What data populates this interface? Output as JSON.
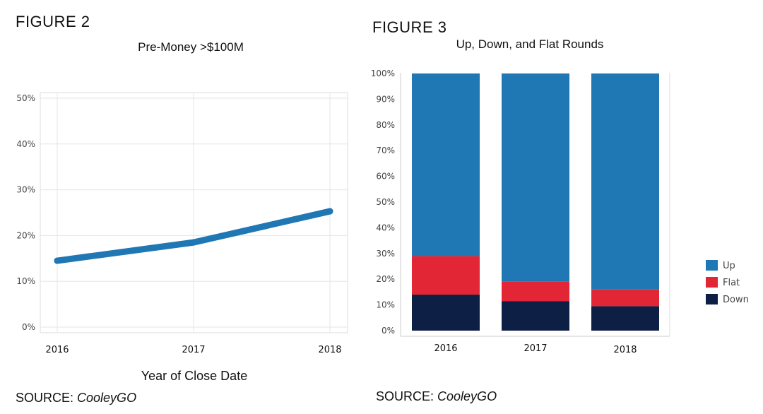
{
  "figure2": {
    "label": "FIGURE 2",
    "source_prefix": "SOURCE:",
    "source_name": "CooleyGO",
    "colors": {
      "line": "#1f77b4",
      "grid": "#e6e6e6",
      "frame": "#dddddd"
    }
  },
  "figure3": {
    "label": "FIGURE 3",
    "source_prefix": "SOURCE:",
    "source_name": "CooleyGO",
    "colors": {
      "Up": "#1f77b4",
      "Flat": "#e32636",
      "Down": "#0d1f45"
    }
  },
  "chart_data": [
    {
      "type": "line",
      "title": "Pre-Money >$100M",
      "xlabel": "Year of Close Date",
      "ylabel": "",
      "x": [
        "2016",
        "2017",
        "2018"
      ],
      "series": [
        {
          "values": [
            14.5,
            18.5,
            25.3
          ]
        }
      ],
      "ylim": [
        0,
        50
      ],
      "yticks": [
        "0%",
        "10%",
        "20%",
        "30%",
        "40%",
        "50%"
      ],
      "ytick_values": [
        0,
        10,
        20,
        30,
        40,
        50
      ],
      "grid": true
    },
    {
      "type": "bar",
      "stacked": true,
      "title": "Up, Down, and Flat Rounds",
      "categories": [
        "2016",
        "2017",
        "2018"
      ],
      "series": [
        {
          "name": "Down",
          "values": [
            14,
            11.5,
            9.5
          ]
        },
        {
          "name": "Flat",
          "values": [
            15,
            7.5,
            6.5
          ]
        },
        {
          "name": "Up",
          "values": [
            71,
            81,
            84
          ]
        }
      ],
      "legend_order": [
        "Up",
        "Flat",
        "Down"
      ],
      "ylim": [
        0,
        100
      ],
      "yticks": [
        "0%",
        "10%",
        "20%",
        "30%",
        "40%",
        "50%",
        "60%",
        "70%",
        "80%",
        "90%",
        "100%"
      ],
      "ytick_values": [
        0,
        10,
        20,
        30,
        40,
        50,
        60,
        70,
        80,
        90,
        100
      ],
      "legend_position": "right",
      "grid": false
    }
  ]
}
